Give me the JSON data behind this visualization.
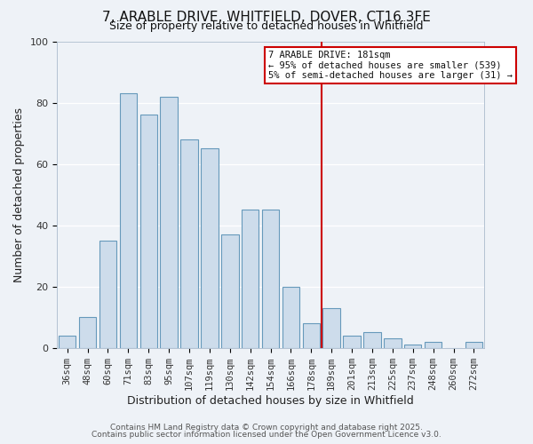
{
  "title": "7, ARABLE DRIVE, WHITFIELD, DOVER, CT16 3FE",
  "subtitle": "Size of property relative to detached houses in Whitfield",
  "xlabel": "Distribution of detached houses by size in Whitfield",
  "ylabel": "Number of detached properties",
  "bar_labels": [
    "36sqm",
    "48sqm",
    "60sqm",
    "71sqm",
    "83sqm",
    "95sqm",
    "107sqm",
    "119sqm",
    "130sqm",
    "142sqm",
    "154sqm",
    "166sqm",
    "178sqm",
    "189sqm",
    "201sqm",
    "213sqm",
    "225sqm",
    "237sqm",
    "248sqm",
    "260sqm",
    "272sqm"
  ],
  "bar_heights": [
    4,
    10,
    35,
    83,
    76,
    82,
    68,
    65,
    37,
    45,
    45,
    20,
    8,
    13,
    4,
    5,
    3,
    1,
    2,
    0,
    2
  ],
  "bar_color": "#cddceb",
  "bar_edge_color": "#6699bb",
  "vline_color": "#cc0000",
  "ylim": [
    0,
    100
  ],
  "annotation_title": "7 ARABLE DRIVE: 181sqm",
  "annotation_line1": "← 95% of detached houses are smaller (539)",
  "annotation_line2": "5% of semi-detached houses are larger (31) →",
  "annotation_box_color": "#ffffff",
  "annotation_box_edge": "#cc0000",
  "footer1": "Contains HM Land Registry data © Crown copyright and database right 2025.",
  "footer2": "Contains public sector information licensed under the Open Government Licence v3.0.",
  "background_color": "#eef2f7",
  "grid_color": "#ffffff",
  "title_fontsize": 11,
  "subtitle_fontsize": 9,
  "axis_label_fontsize": 9,
  "tick_fontsize": 7.5,
  "footer_fontsize": 6.5
}
